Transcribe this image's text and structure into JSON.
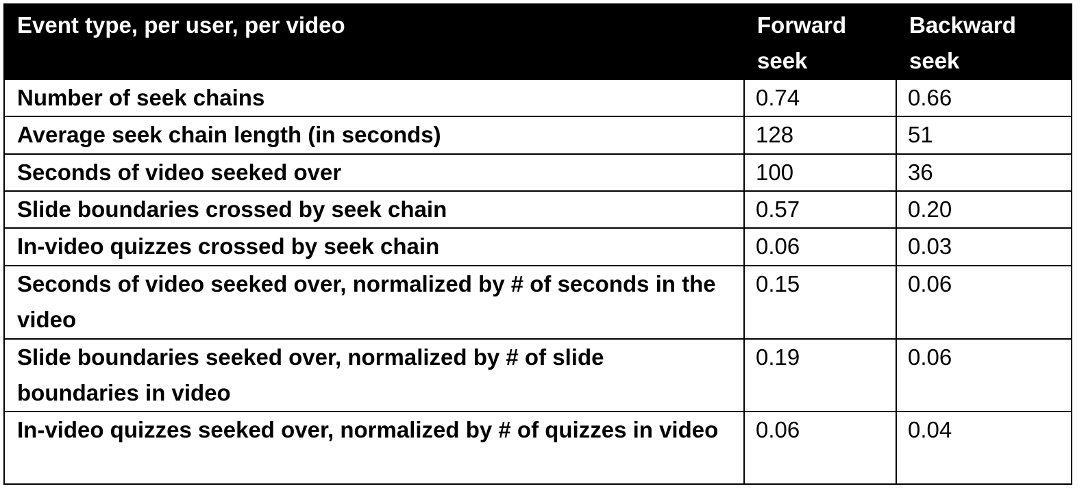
{
  "table": {
    "headers": [
      "Event type, per user, per video",
      "Forward seek",
      "Backward seek"
    ],
    "rows": [
      {
        "label": "Number of seek chains",
        "forward": "0.74",
        "backward": "0.66"
      },
      {
        "label": "Average seek chain length (in seconds)",
        "forward": "128",
        "backward": "51"
      },
      {
        "label": "Seconds of video seeked over",
        "forward": "100",
        "backward": "36"
      },
      {
        "label": "Slide boundaries crossed by seek chain",
        "forward": "0.57",
        "backward": "0.20"
      },
      {
        "label": "In-video quizzes crossed by seek chain",
        "forward": "0.06",
        "backward": "0.03"
      },
      {
        "label": "Seconds of video seeked over, normalized by # of seconds in the video",
        "forward": "0.15",
        "backward": "0.06"
      },
      {
        "label": "Slide boundaries seeked over, normalized by # of slide boundaries in video",
        "forward": "0.19",
        "backward": "0.06"
      },
      {
        "label": "In-video quizzes seeked over, normalized by # of quizzes in video",
        "forward": "0.06",
        "backward": "0.04"
      }
    ]
  }
}
